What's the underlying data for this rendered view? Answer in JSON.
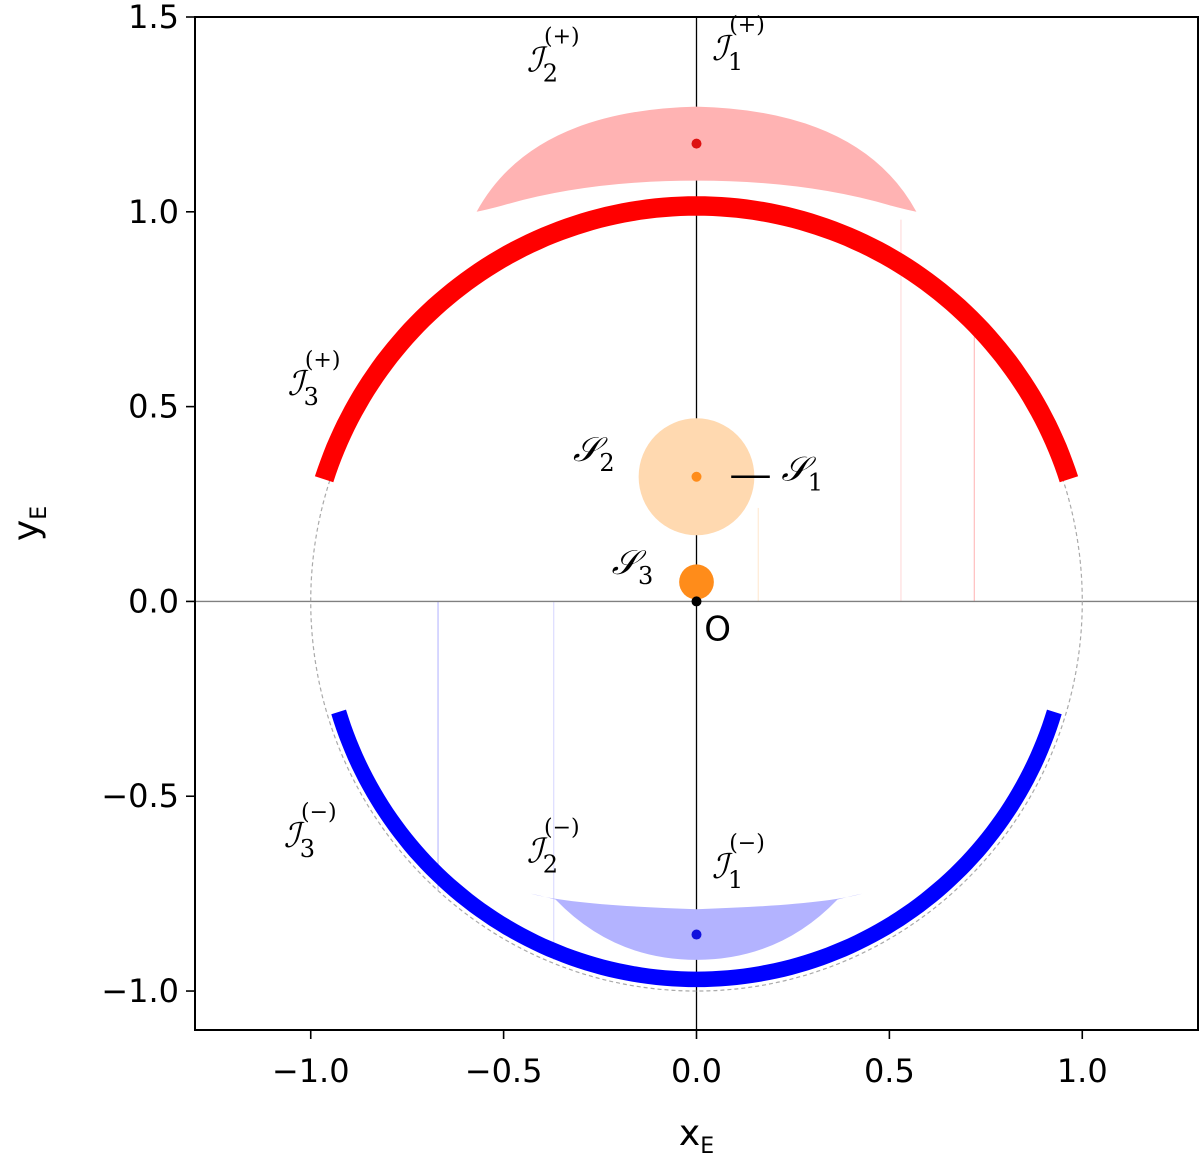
{
  "chart_data": {
    "type": "scatter",
    "title": "",
    "xlabel": "x",
    "xlabel_sub": "E",
    "ylabel": "y",
    "ylabel_sub": "E",
    "xlim": [
      -1.3,
      1.3
    ],
    "ylim": [
      -1.1,
      1.5
    ],
    "xticks": [
      -1.0,
      -0.5,
      0.0,
      0.5,
      1.0
    ],
    "xtick_labels": [
      "−1.0",
      "−0.5",
      "0.0",
      "0.5",
      "1.0"
    ],
    "yticks": [
      -1.0,
      -0.5,
      0.0,
      0.5,
      1.0,
      1.5
    ],
    "ytick_labels": [
      "−1.0",
      "−0.5",
      "0.0",
      "0.5",
      "1.0",
      "1.5"
    ],
    "grid": false,
    "reference_lines": [
      {
        "orientation": "horizontal",
        "value": 0,
        "color": "#808080"
      },
      {
        "orientation": "vertical",
        "value": 0,
        "color": "#000000"
      }
    ],
    "einstein_ring": {
      "radius": 1.0,
      "center": [
        0,
        0
      ],
      "style": "dashed",
      "color": "#aaaaaa"
    },
    "points": [
      {
        "x": 0.0,
        "y": 1.175,
        "color": "#dd1111"
      },
      {
        "x": 0.0,
        "y": -0.855,
        "color": "#1111dd"
      },
      {
        "x": 0.0,
        "y": 0.32,
        "color": "#ff8c1a"
      },
      {
        "x": 0.0,
        "y": 0.0,
        "color": "#000000"
      }
    ],
    "sources": [
      {
        "center": [
          0.0,
          0.32
        ],
        "radius": 0.15,
        "color": "#ffd9b0"
      },
      {
        "center": [
          0.0,
          0.05
        ],
        "radius": 0.045,
        "color": "#ff8c1a"
      }
    ],
    "images": [
      {
        "sign": "+",
        "kind": "arc",
        "start_angle_deg": 18,
        "end_angle_deg": 162,
        "r_inner": 0.99,
        "r_outer": 1.04,
        "color": "#ff0000"
      },
      {
        "sign": "-",
        "kind": "arc",
        "start_angle_deg": 197,
        "end_angle_deg": 343,
        "r_inner": 0.95,
        "r_outer": 0.99,
        "color": "#0000ff"
      },
      {
        "sign": "+",
        "kind": "crescent",
        "x_range": [
          -0.57,
          0.57
        ],
        "top_y": 1.27,
        "bottom_y": 1.08,
        "tip_y": 1.0,
        "color": "#ffb3b3"
      },
      {
        "sign": "-",
        "kind": "crescent",
        "x_range": [
          -0.43,
          0.43
        ],
        "top_y": -0.79,
        "bottom_y": -0.92,
        "tip_y": -0.75,
        "color": "#b3b3ff"
      }
    ],
    "faint_lines": [
      {
        "x": 0.72,
        "y0": 0.0,
        "y1": 0.68,
        "color": "#ffb0b0"
      },
      {
        "x": 0.53,
        "y0": 0.0,
        "y1": 0.98,
        "color": "#ffd6d6"
      },
      {
        "x": 0.16,
        "y0": 0.0,
        "y1": 0.24,
        "color": "#ffe6cc"
      },
      {
        "x": -0.67,
        "y0": -0.74,
        "y1": 0.0,
        "color": "#b0b0ff"
      },
      {
        "x": -0.37,
        "y0": -0.92,
        "y1": 0.0,
        "color": "#d6d6ff"
      }
    ],
    "annotations": [
      {
        "id": "I2p",
        "base": "ℐ",
        "sub": "2",
        "sup": "(+)",
        "x": -0.44,
        "y": 1.36
      },
      {
        "id": "I1p",
        "base": "ℐ",
        "sub": "1",
        "sup": "(+)",
        "x": 0.04,
        "y": 1.39
      },
      {
        "id": "I3p",
        "base": "ℐ",
        "sub": "3",
        "sup": "(+)",
        "x": -1.06,
        "y": 0.53
      },
      {
        "id": "S2",
        "base": "𝒮",
        "sub": "2",
        "sup": "",
        "x": -0.32,
        "y": 0.36
      },
      {
        "id": "S1",
        "base": "𝒮",
        "sub": "1",
        "sup": "",
        "x": 0.22,
        "y": 0.31
      },
      {
        "id": "S3",
        "base": "𝒮",
        "sub": "3",
        "sup": "",
        "x": -0.22,
        "y": 0.07
      },
      {
        "id": "I3m",
        "base": "ℐ",
        "sub": "3",
        "sup": "(−)",
        "x": -1.07,
        "y": -0.63
      },
      {
        "id": "I2m",
        "base": "ℐ",
        "sub": "2",
        "sup": "(−)",
        "x": -0.44,
        "y": -0.67
      },
      {
        "id": "I1m",
        "base": "ℐ",
        "sub": "1",
        "sup": "(−)",
        "x": 0.04,
        "y": -0.71
      }
    ],
    "origin_label": "O",
    "s1_leader": {
      "x0": 0.09,
      "x1": 0.19,
      "y": 0.32
    }
  }
}
